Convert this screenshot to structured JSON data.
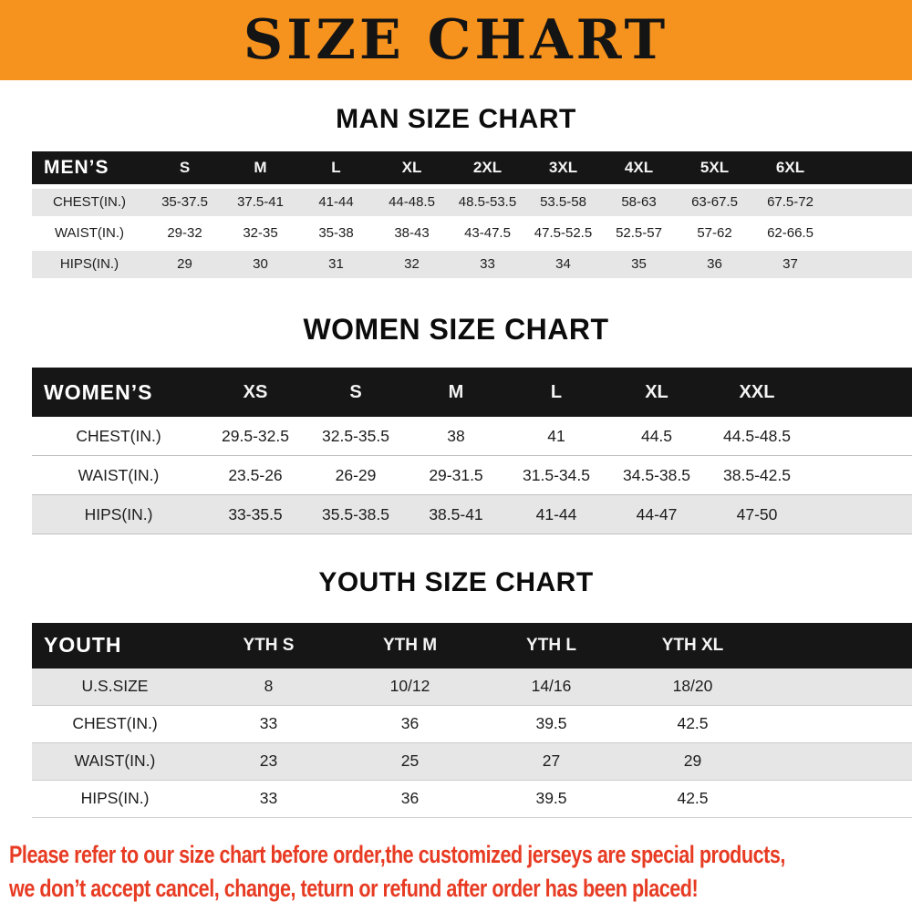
{
  "banner": {
    "title": "SIZE CHART"
  },
  "sections": [
    {
      "name": "man-size-chart",
      "title": "MAN SIZE CHART",
      "header": [
        "MEN’S",
        "S",
        "M",
        "L",
        "XL",
        "2XL",
        "3XL",
        "4XL",
        "5XL",
        "6XL"
      ],
      "rows": [
        {
          "label": "CHEST(IN.)",
          "values": [
            "35-37.5",
            "37.5-41",
            "41-44",
            "44-48.5",
            "48.5-53.5",
            "53.5-58",
            "58-63",
            "63-67.5",
            "67.5-72"
          ]
        },
        {
          "label": "WAIST(IN.)",
          "values": [
            "29-32",
            "32-35",
            "35-38",
            "38-43",
            "43-47.5",
            "47.5-52.5",
            "52.5-57",
            "57-62",
            "62-66.5"
          ]
        },
        {
          "label": "HIPS(IN.)",
          "values": [
            "29",
            "30",
            "31",
            "32",
            "33",
            "34",
            "35",
            "36",
            "37"
          ]
        }
      ]
    },
    {
      "name": "women-size-chart",
      "title": "WOMEN SIZE CHART",
      "header": [
        "WOMEN’S",
        "XS",
        "S",
        "M",
        "L",
        "XL",
        "XXL"
      ],
      "rows": [
        {
          "label": "CHEST(IN.)",
          "values": [
            "29.5-32.5",
            "32.5-35.5",
            "38",
            "41",
            "44.5",
            "44.5-48.5"
          ]
        },
        {
          "label": "WAIST(IN.)",
          "values": [
            "23.5-26",
            "26-29",
            "29-31.5",
            "31.5-34.5",
            "34.5-38.5",
            "38.5-42.5"
          ]
        },
        {
          "label": "HIPS(IN.)",
          "values": [
            "33-35.5",
            "35.5-38.5",
            "38.5-41",
            "41-44",
            "44-47",
            "47-50"
          ]
        }
      ]
    },
    {
      "name": "youth-size-chart",
      "title": "YOUTH SIZE CHART",
      "header": [
        "YOUTH",
        "YTH S",
        "YTH M",
        "YTH L",
        "YTH XL"
      ],
      "rows": [
        {
          "label": "U.S.SIZE",
          "values": [
            "8",
            "10/12",
            "14/16",
            "18/20"
          ]
        },
        {
          "label": "CHEST(IN.)",
          "values": [
            "33",
            "36",
            "39.5",
            "42.5"
          ]
        },
        {
          "label": "WAIST(IN.)",
          "values": [
            "23",
            "25",
            "27",
            "29"
          ]
        },
        {
          "label": "HIPS(IN.)",
          "values": [
            "33",
            "36",
            "39.5",
            "42.5"
          ]
        }
      ]
    }
  ],
  "footer": {
    "lines": [
      "Please refer to our size chart before order,the customized jerseys are special products,",
      "we don’t accept cancel, change, teturn or refund after order has been placed!"
    ]
  },
  "colors": {
    "banner_bg": "#F6921E",
    "table_header_bg": "#161616",
    "alt_row_bg": "#E6E6E6",
    "footer_text": "#E73B23"
  }
}
